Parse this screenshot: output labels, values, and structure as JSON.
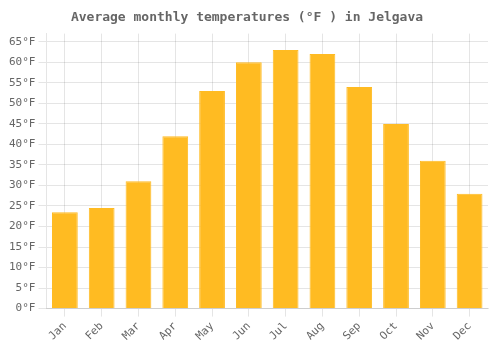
{
  "chart_data": {
    "type": "bar",
    "title": "Average monthly temperatures (°F ) in Jelgava",
    "categories": [
      "Jan",
      "Feb",
      "Mar",
      "Apr",
      "May",
      "Jun",
      "Jul",
      "Aug",
      "Sep",
      "Oct",
      "Nov",
      "Dec"
    ],
    "values": [
      23.5,
      24.5,
      31.0,
      42.0,
      53.0,
      60.0,
      63.0,
      62.0,
      54.0,
      45.0,
      36.0,
      28.0
    ],
    "color": "#FFBB22",
    "ylim": [
      0,
      67
    ],
    "yticks": [
      {
        "value": 0,
        "label": "0°F"
      },
      {
        "value": 5,
        "label": "5°F"
      },
      {
        "value": 10,
        "label": "10°F"
      },
      {
        "value": 15,
        "label": "15°F"
      },
      {
        "value": 20,
        "label": "20°F"
      },
      {
        "value": 25,
        "label": "25°F"
      },
      {
        "value": 30,
        "label": "30°F"
      },
      {
        "value": 35,
        "label": "35°F"
      },
      {
        "value": 40,
        "label": "40°F"
      },
      {
        "value": 45,
        "label": "45°F"
      },
      {
        "value": 50,
        "label": "50°F"
      },
      {
        "value": 55,
        "label": "55°F"
      },
      {
        "value": 60,
        "label": "60°F"
      },
      {
        "value": 65,
        "label": "65°F"
      }
    ],
    "grid": true
  }
}
